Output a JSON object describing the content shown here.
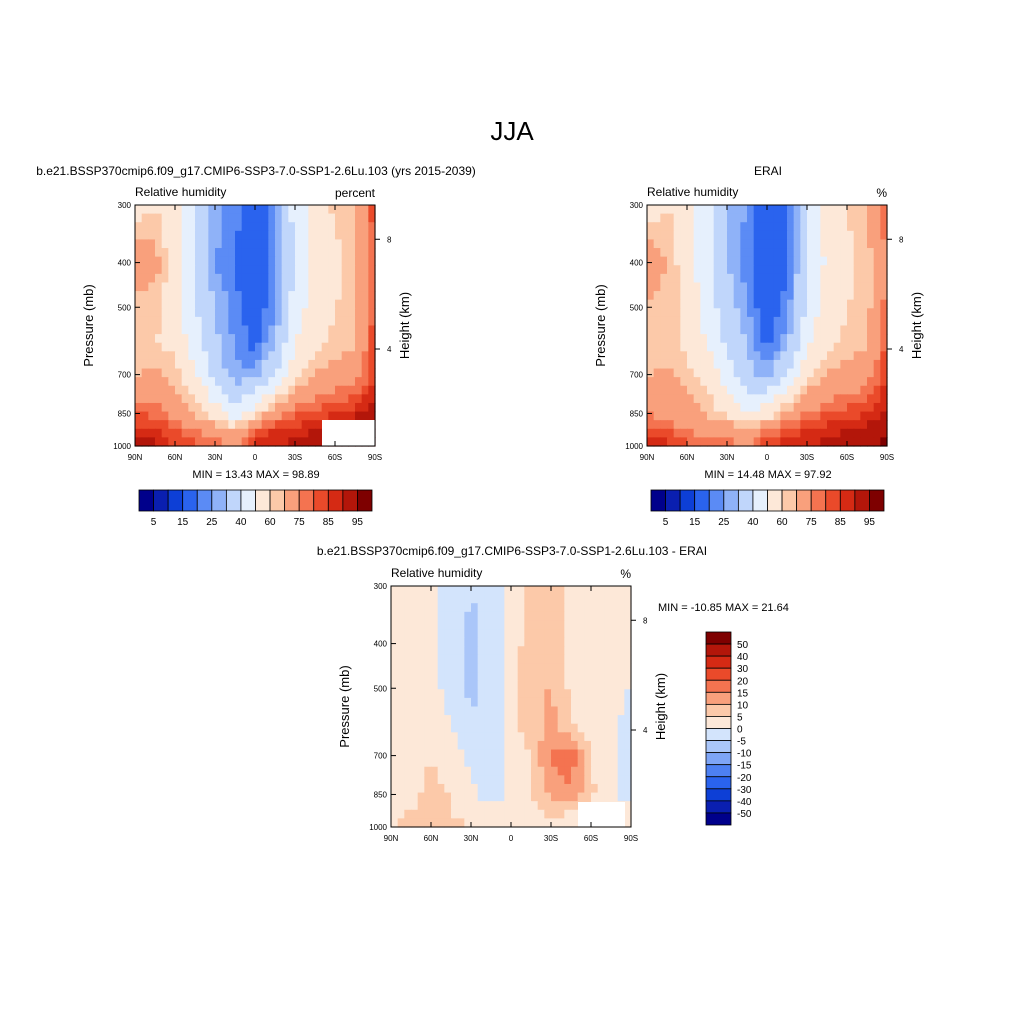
{
  "page_title": "JJA",
  "colors": {
    "model_scale": [
      "#00008b",
      "#0a1fb0",
      "#0d3fd6",
      "#2a63ee",
      "#5b8bf5",
      "#8fb2f8",
      "#c0d6fb",
      "#e6f0fd",
      "#fde8d8",
      "#fcc9a9",
      "#f9a07c",
      "#f47350",
      "#ea4a2a",
      "#d52a14",
      "#b3160a",
      "#7e0000"
    ],
    "diff_scale": [
      "#00008b",
      "#0a1fb0",
      "#0d3fd6",
      "#2a63ee",
      "#4d80f2",
      "#7ea5f6",
      "#aac6f9",
      "#d3e4fc",
      "#fde8d8",
      "#fcc9a9",
      "#f9a07c",
      "#f47350",
      "#ea4a2a",
      "#d52a14",
      "#b3160a",
      "#7e0000"
    ]
  },
  "chart_data": [
    {
      "type": "heatmap",
      "title": "b.e21.BSSP370cmip6.f09_g17.CMIP6-SSP3-7.0-SSP1-2.6Lu.103 (yrs 2015-2039)",
      "left_label": "Relative humidity",
      "right_label": "percent",
      "ylabel": "Pressure (mb)",
      "y2label": "Height (km)",
      "x_ticks": [
        "90N",
        "60N",
        "30N",
        "0",
        "30S",
        "60S",
        "90S"
      ],
      "y_ticks": [
        "300",
        "400",
        "500",
        "700",
        "850",
        "1000"
      ],
      "y2_ticks": [
        "8",
        "4"
      ],
      "stats": "MIN =  13.43  MAX =  98.89",
      "colorbar_labels": [
        "5",
        "15",
        "25",
        "40",
        "60",
        "75",
        "85",
        "95"
      ],
      "lat_grid": [
        -90,
        -75,
        -60,
        -45,
        -30,
        -15,
        0,
        15,
        30,
        45,
        60,
        75,
        90
      ],
      "plev_grid": [
        300,
        400,
        500,
        600,
        700,
        850,
        925,
        1000
      ],
      "values": [
        [
          55,
          60,
          52,
          40,
          28,
          22,
          15,
          25,
          45,
          55,
          62,
          65,
          85
        ],
        [
          70,
          68,
          55,
          38,
          25,
          20,
          14,
          22,
          40,
          52,
          58,
          62,
          80
        ],
        [
          62,
          62,
          55,
          40,
          30,
          22,
          15,
          24,
          45,
          55,
          60,
          62,
          82
        ],
        [
          60,
          60,
          58,
          45,
          32,
          24,
          18,
          30,
          50,
          58,
          62,
          64,
          85
        ],
        [
          65,
          66,
          62,
          52,
          35,
          26,
          28,
          40,
          58,
          65,
          68,
          70,
          85
        ],
        [
          80,
          78,
          72,
          65,
          55,
          45,
          55,
          70,
          78,
          82,
          85,
          88,
          95
        ],
        [
          88,
          86,
          80,
          75,
          70,
          65,
          80,
          85,
          88,
          90,
          95,
          95,
          96
        ],
        [
          95,
          92,
          85,
          82,
          78,
          75,
          88,
          90,
          92,
          94,
          96,
          95,
          96
        ]
      ]
    },
    {
      "type": "heatmap",
      "title": "ERAI",
      "left_label": "Relative humidity",
      "right_label": "%",
      "ylabel": "Pressure (mb)",
      "y2label": "Height (km)",
      "x_ticks": [
        "90N",
        "60N",
        "30N",
        "0",
        "30S",
        "60S",
        "90S"
      ],
      "y_ticks": [
        "300",
        "400",
        "500",
        "700",
        "850",
        "1000"
      ],
      "y2_ticks": [
        "8",
        "4"
      ],
      "stats": "MIN =  14.48  MAX =  97.92",
      "colorbar_labels": [
        "5",
        "15",
        "25",
        "40",
        "60",
        "75",
        "85",
        "95"
      ],
      "lat_grid": [
        -90,
        -75,
        -60,
        -45,
        -30,
        -15,
        0,
        15,
        30,
        45,
        60,
        75,
        90
      ],
      "plev_grid": [
        300,
        400,
        500,
        600,
        700,
        850,
        925,
        1000
      ],
      "values": [
        [
          55,
          60,
          55,
          45,
          30,
          25,
          15,
          20,
          40,
          55,
          60,
          65,
          80
        ],
        [
          72,
          65,
          55,
          42,
          30,
          22,
          14,
          20,
          38,
          52,
          58,
          62,
          75
        ],
        [
          65,
          62,
          58,
          45,
          35,
          25,
          15,
          22,
          42,
          55,
          60,
          62,
          78
        ],
        [
          62,
          62,
          58,
          50,
          38,
          30,
          18,
          28,
          48,
          58,
          62,
          64,
          82
        ],
        [
          65,
          66,
          62,
          58,
          45,
          32,
          28,
          40,
          58,
          65,
          68,
          70,
          85
        ],
        [
          75,
          72,
          68,
          65,
          58,
          50,
          55,
          68,
          75,
          80,
          82,
          86,
          92
        ],
        [
          82,
          80,
          75,
          72,
          70,
          68,
          75,
          82,
          85,
          88,
          90,
          92,
          95
        ],
        [
          90,
          88,
          82,
          80,
          78,
          75,
          85,
          88,
          90,
          92,
          94,
          95,
          96
        ]
      ]
    },
    {
      "type": "heatmap",
      "title": "b.e21.BSSP370cmip6.f09_g17.CMIP6-SSP3-7.0-SSP1-2.6Lu.103 - ERAI",
      "left_label": "Relative humidity",
      "right_label": "%",
      "ylabel": "Pressure (mb)",
      "y2label": "Height (km)",
      "x_ticks": [
        "90N",
        "60N",
        "30N",
        "0",
        "30S",
        "60S",
        "90S"
      ],
      "y_ticks": [
        "300",
        "400",
        "500",
        "700",
        "850",
        "1000"
      ],
      "y2_ticks": [
        "8",
        "4"
      ],
      "stats": "MIN = -10.85  MAX =  21.64",
      "colorbar_labels": [
        "50",
        "40",
        "30",
        "20",
        "15",
        "10",
        "5",
        "0",
        "-5",
        "-10",
        "-15",
        "-20",
        "-30",
        "-40",
        "-50"
      ],
      "lat_grid": [
        -90,
        -75,
        -60,
        -45,
        -30,
        -15,
        0,
        15,
        30,
        45,
        60,
        75,
        90
      ],
      "plev_grid": [
        300,
        400,
        500,
        600,
        700,
        850,
        925,
        1000
      ],
      "values": [
        [
          3,
          4,
          2,
          -2,
          -5,
          -4,
          1,
          6,
          7,
          3,
          4,
          3,
          2
        ],
        [
          2,
          3,
          1,
          -3,
          -6,
          -3,
          2,
          8,
          9,
          4,
          4,
          3,
          1
        ],
        [
          2,
          3,
          2,
          -2,
          -6,
          -4,
          3,
          9,
          10,
          4,
          3,
          2,
          0
        ],
        [
          2,
          3,
          3,
          0,
          -4,
          -5,
          4,
          7,
          12,
          5,
          2,
          3,
          -4
        ],
        [
          3,
          4,
          5,
          3,
          -2,
          -3,
          3,
          5,
          16,
          18,
          5,
          2,
          -6
        ],
        [
          3,
          4,
          6,
          5,
          2,
          -3,
          2,
          4,
          12,
          14,
          6,
          1,
          -2
        ],
        [
          4,
          5,
          6,
          5,
          3,
          2,
          3,
          3,
          6,
          5,
          4,
          2,
          1
        ],
        [
          5,
          6,
          7,
          7,
          4,
          3,
          4,
          3,
          3,
          3,
          2,
          3,
          2
        ]
      ]
    }
  ]
}
